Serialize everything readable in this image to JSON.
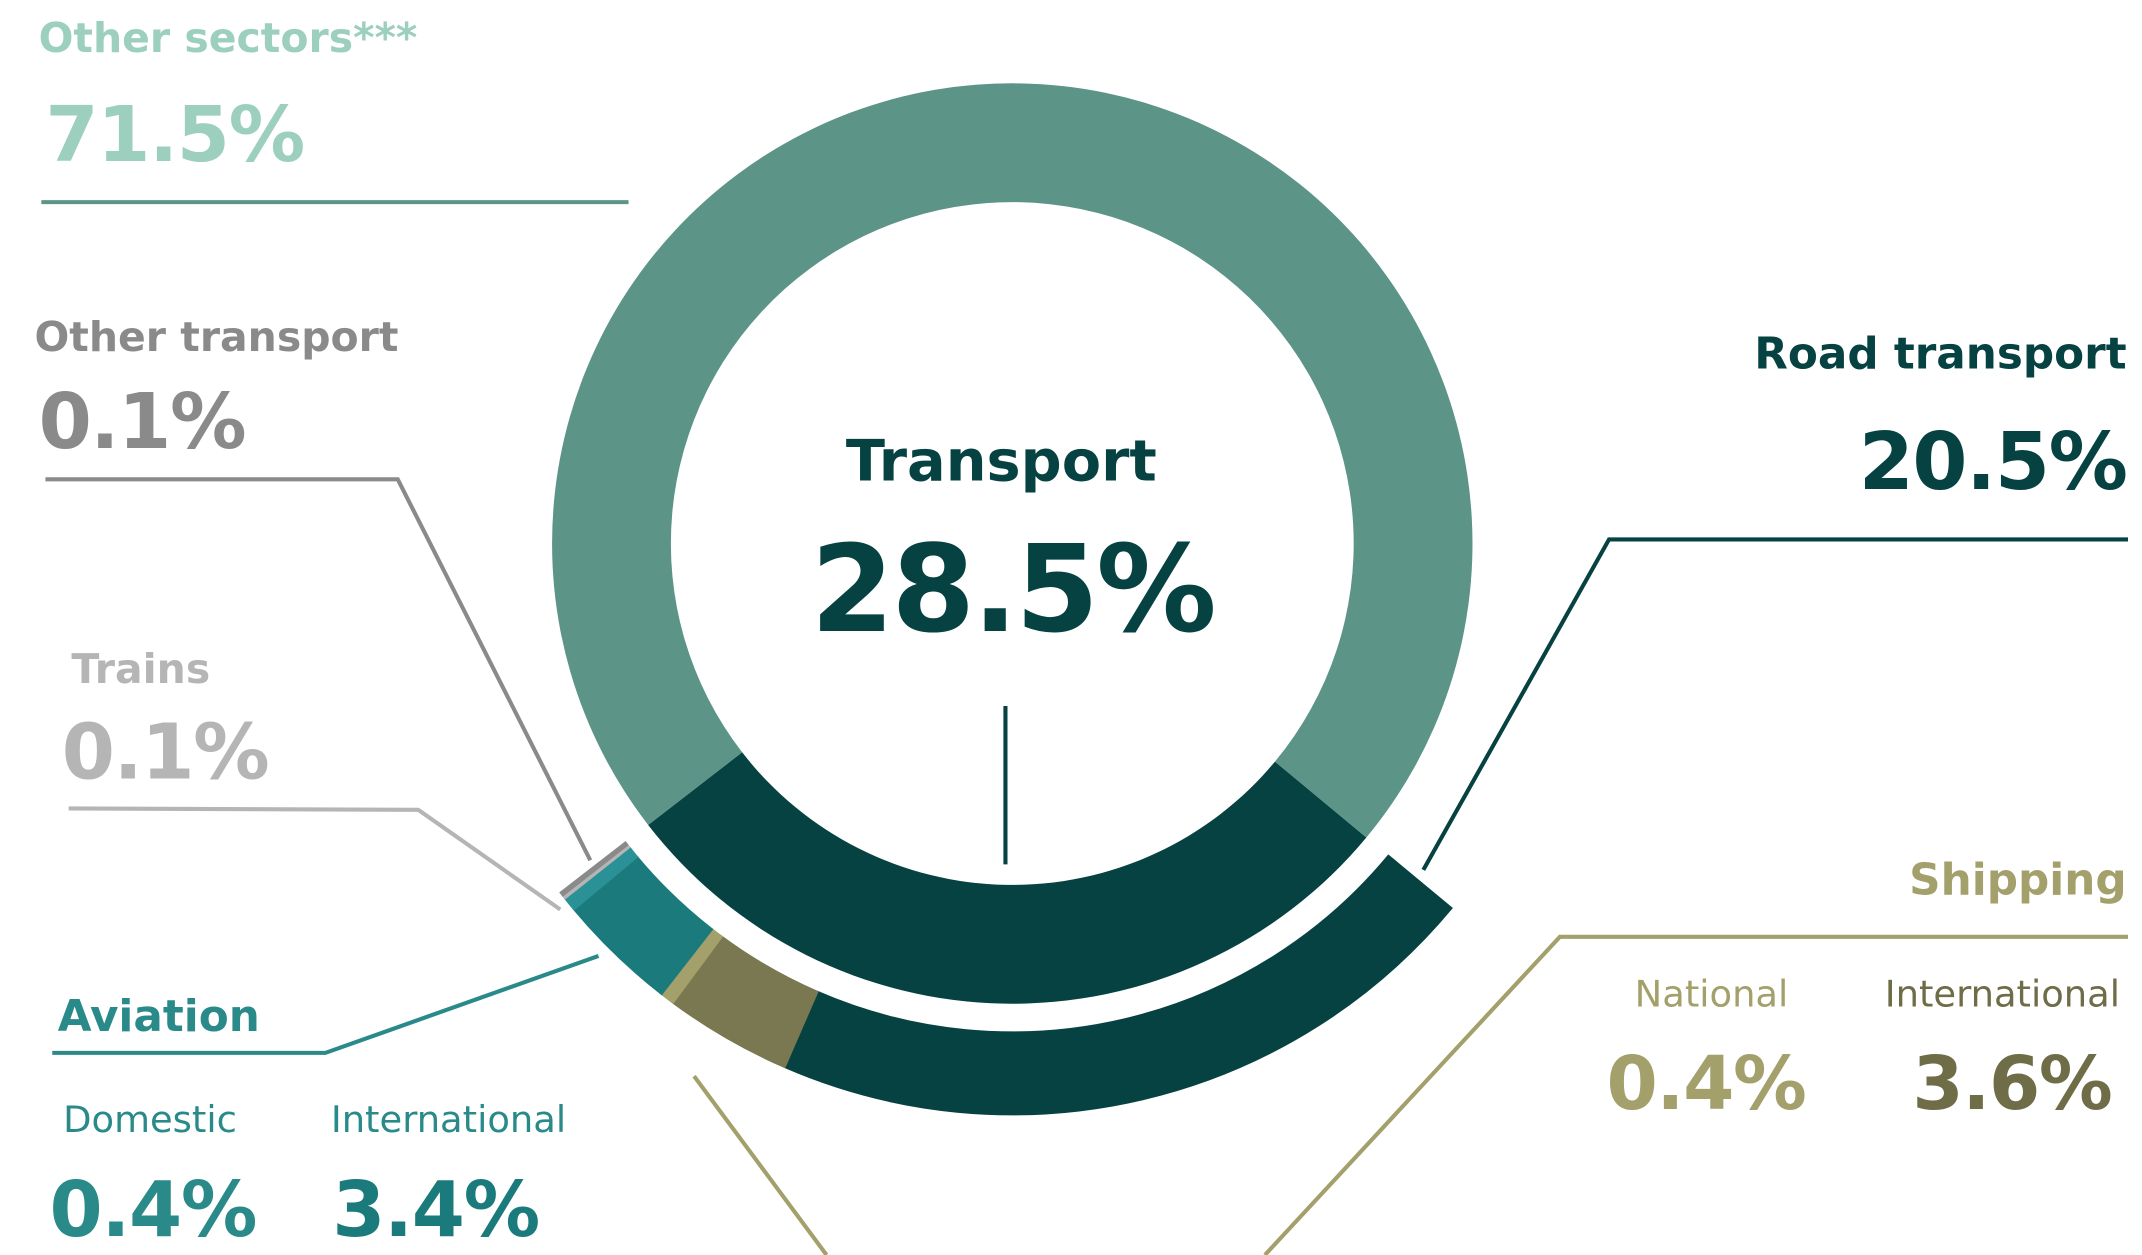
{
  "chart_data": {
    "type": "donut",
    "inner": [
      {
        "name": "Other sectors***",
        "value": 71.5,
        "value_label": "71.5%",
        "color": "#5c9488"
      },
      {
        "name": "Transport",
        "value": 28.5,
        "value_label": "28.5%",
        "color": "#064241"
      }
    ],
    "outer": [
      {
        "name": "Road transport",
        "value": 20.5,
        "value_label": "20.5%",
        "color": "#064241"
      },
      {
        "name": "Shipping",
        "parts": [
          {
            "name": "International",
            "value": 3.6,
            "value_label": "3.6%",
            "color": "#7a7850"
          },
          {
            "name": "National",
            "value": 0.4,
            "value_label": "0.4%",
            "color": "#a3a06b"
          }
        ]
      },
      {
        "name": "Aviation",
        "parts": [
          {
            "name": "International",
            "value": 3.4,
            "value_label": "3.4%",
            "color": "#1a7a7c"
          },
          {
            "name": "Domestic",
            "value": 0.4,
            "value_label": "0.4%",
            "color": "#2a9296"
          }
        ]
      },
      {
        "name": "Trains",
        "value": 0.1,
        "value_label": "0.1%",
        "color": "#b5b5b5"
      },
      {
        "name": "Other transport",
        "value": 0.1,
        "value_label": "0.1%",
        "color": "#8a8a8a"
      }
    ]
  }
}
